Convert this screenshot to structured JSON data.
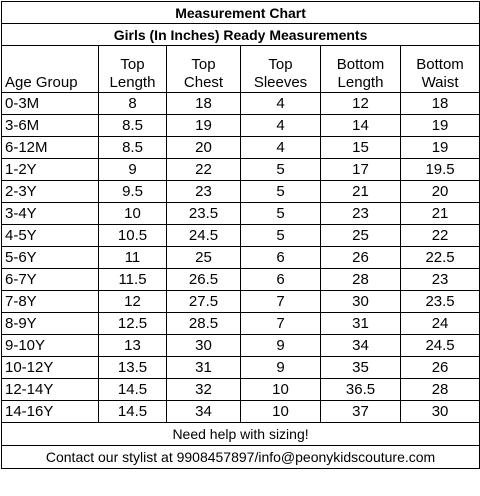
{
  "header": {
    "title": "Measurement Chart",
    "subtitle": "Girls (In Inches) Ready Measurements"
  },
  "table": {
    "columns": [
      [
        "Age Group"
      ],
      [
        "Top",
        "Length"
      ],
      [
        "Top",
        "Chest"
      ],
      [
        "Top",
        "Sleeves"
      ],
      [
        "Bottom",
        "Length"
      ],
      [
        "Bottom",
        "Waist"
      ]
    ],
    "rows": [
      [
        "0-3M",
        8,
        18,
        4,
        12,
        18
      ],
      [
        "3-6M",
        8.5,
        19,
        4,
        14,
        19
      ],
      [
        "6-12M",
        8.5,
        20,
        4,
        15,
        19
      ],
      [
        "1-2Y",
        9,
        22,
        5,
        17,
        19.5
      ],
      [
        "2-3Y",
        9.5,
        23,
        5,
        21,
        20
      ],
      [
        "3-4Y",
        10,
        23.5,
        5,
        23,
        21
      ],
      [
        "4-5Y",
        10.5,
        24.5,
        5,
        25,
        22
      ],
      [
        "5-6Y",
        11,
        25,
        6,
        26,
        22.5
      ],
      [
        "6-7Y",
        11.5,
        26.5,
        6,
        28,
        23
      ],
      [
        "7-8Y",
        12,
        27.5,
        7,
        30,
        23.5
      ],
      [
        "8-9Y",
        12.5,
        28.5,
        7,
        31,
        24
      ],
      [
        "9-10Y",
        13,
        30,
        9,
        34,
        24.5
      ],
      [
        "10-12Y",
        13.5,
        31,
        9,
        35,
        26
      ],
      [
        "12-14Y",
        14.5,
        32,
        10,
        36.5,
        28
      ],
      [
        "14-16Y",
        14.5,
        34,
        10,
        37,
        30
      ]
    ]
  },
  "footer": {
    "help": "Need help with sizing!",
    "contact": "Contact our stylist at 9908457897/info@peonykidscouture.com"
  }
}
